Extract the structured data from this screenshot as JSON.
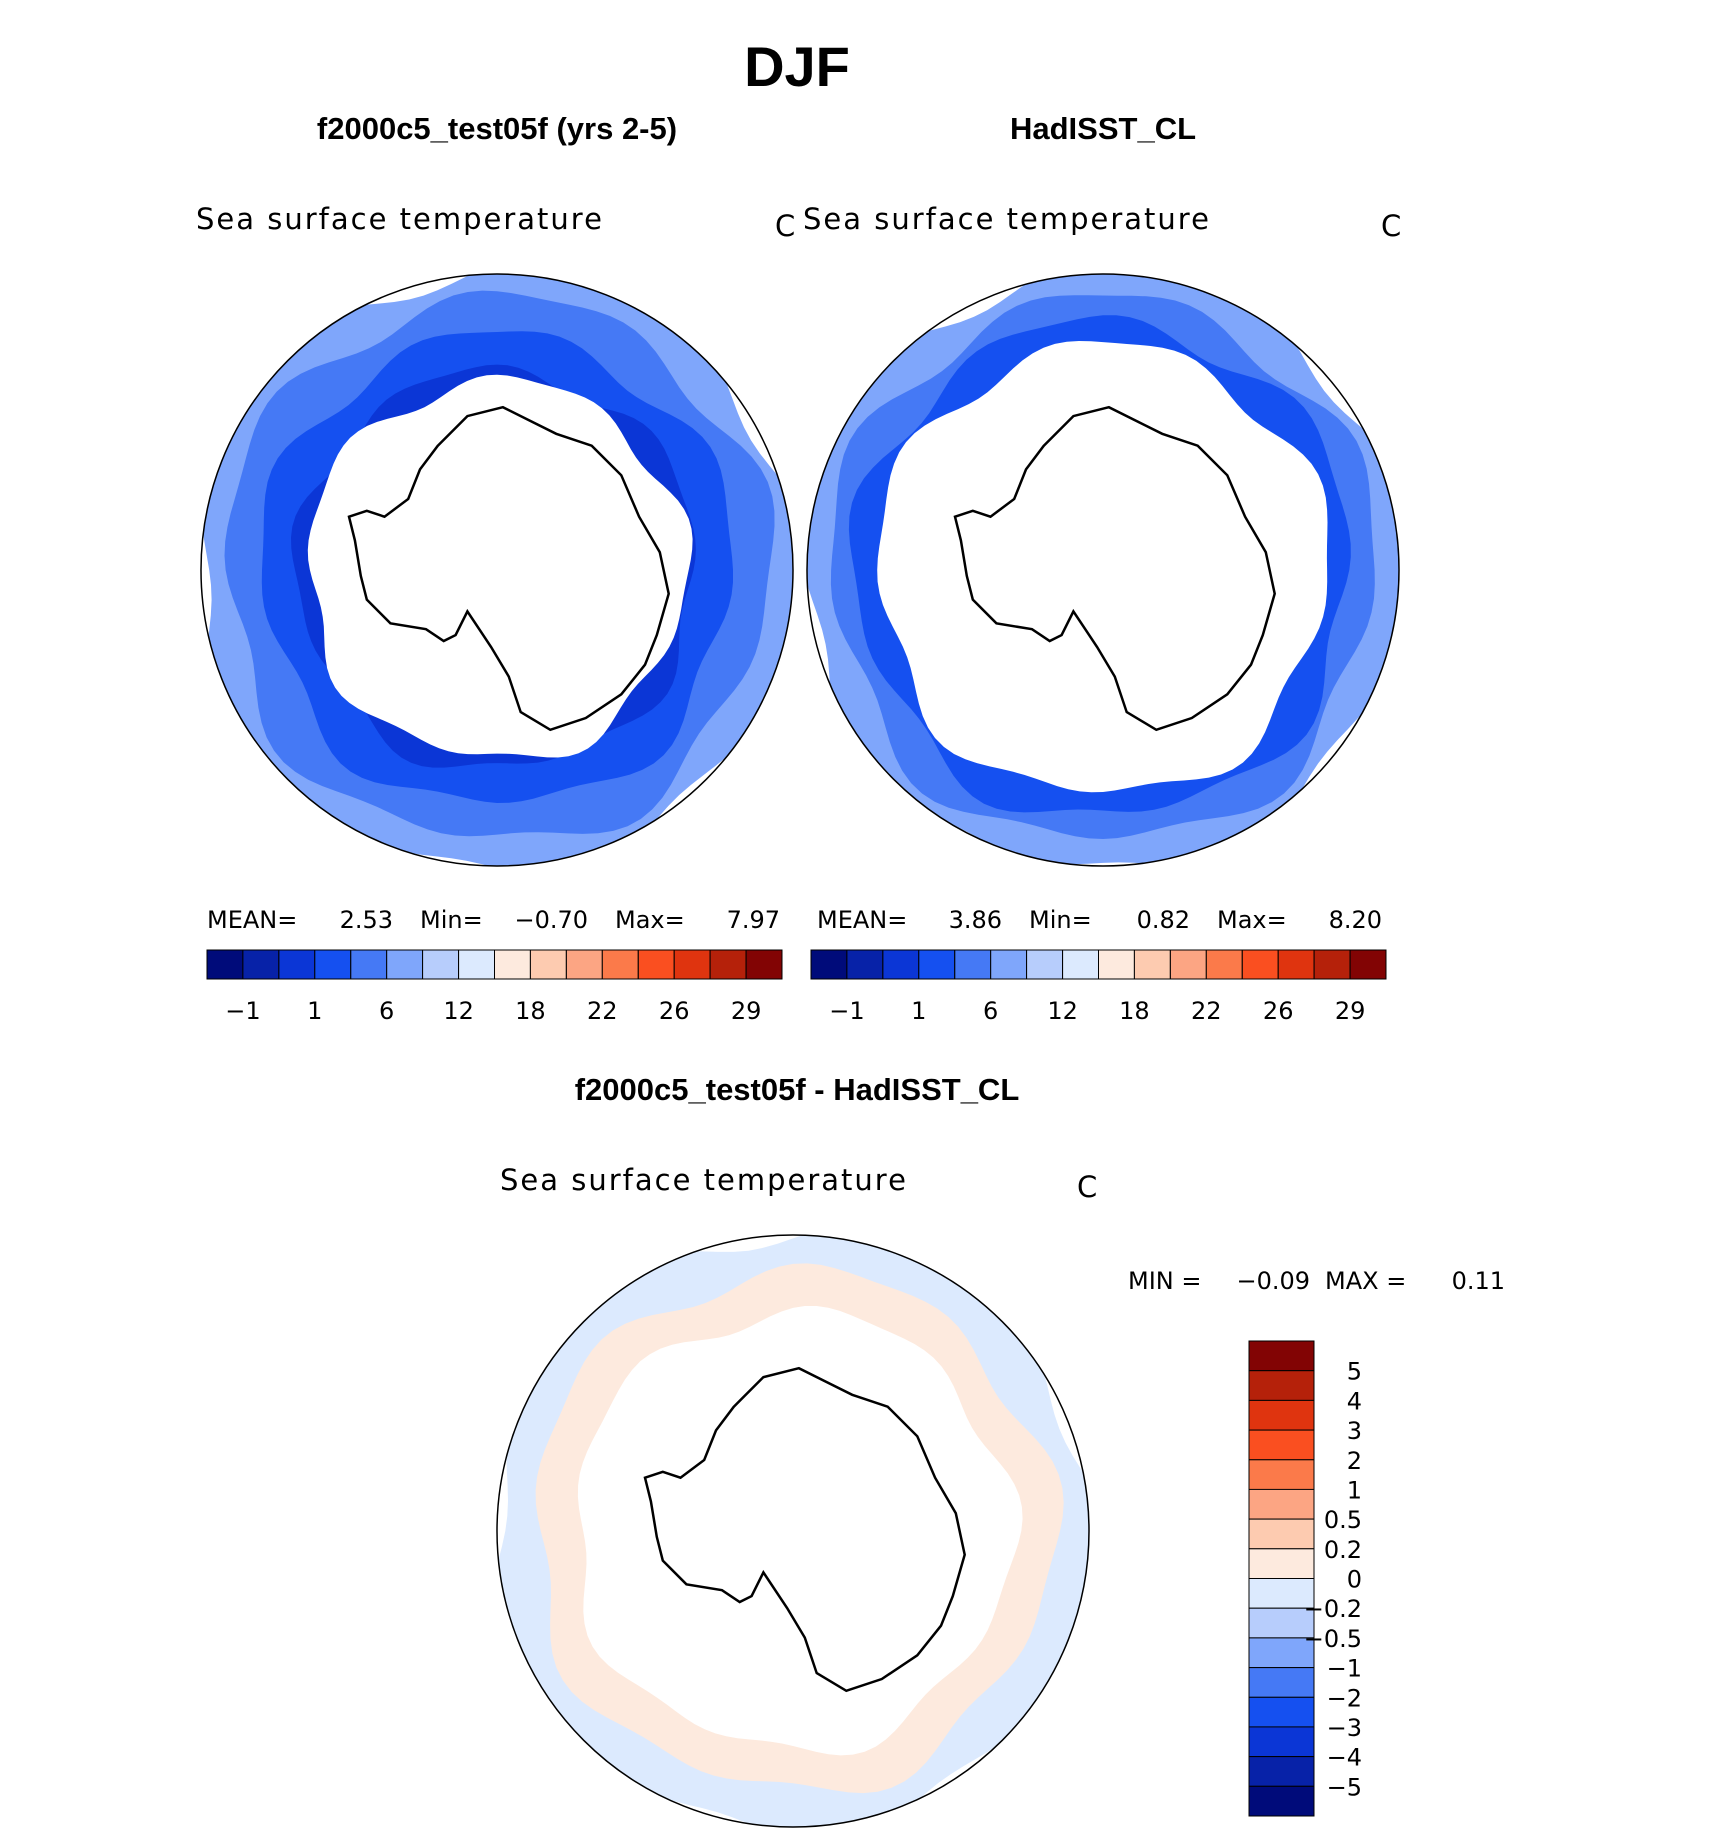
{
  "figure": {
    "title": "DJF"
  },
  "colors": {
    "abs_scale": [
      "#000b7a",
      "#0722a8",
      "#0b36d6",
      "#1550f0",
      "#4579f5",
      "#7fa6fb",
      "#b7cdfc",
      "#dceafe",
      "#fdeade",
      "#fdcbb0",
      "#fca583",
      "#fb7a4a",
      "#fa4f20",
      "#df340f",
      "#b5210a",
      "#820404"
    ],
    "diff_scale": [
      "#820404",
      "#b5210a",
      "#df340f",
      "#fa4f20",
      "#fb7a4a",
      "#fca583",
      "#fdcbb0",
      "#fdeade",
      "#dceafe",
      "#b7cdfc",
      "#7fa6fb",
      "#4579f5",
      "#1550f0",
      "#0b36d6",
      "#0722a8",
      "#000b7a"
    ],
    "land": "#ffffff",
    "coast": "#000000"
  },
  "panels": [
    {
      "title": "f2000c5_test05f (yrs 2-5)",
      "variable": "Sea surface temperature",
      "units": "C",
      "stats": {
        "mean_label": "MEAN=",
        "mean": "2.53",
        "min_label": "Min=",
        "min": "−0.70",
        "max_label": "Max=",
        "max": "7.97"
      },
      "colorbar_ticks": [
        "−1",
        "1",
        "6",
        "12",
        "18",
        "22",
        "26",
        "29"
      ],
      "map": {
        "fill_bands": [
          {
            "level": 5,
            "outer": 1.0,
            "inner": 0.0
          },
          {
            "level": 4,
            "outer": 0.9,
            "inner": 0.0
          },
          {
            "level": 3,
            "outer": 0.78,
            "inner": 0.0
          },
          {
            "level": 2,
            "outer": 0.66,
            "inner": 0.0
          }
        ],
        "ice_edge": 0.64
      }
    },
    {
      "title": "HadISST_CL",
      "variable": "Sea surface temperature",
      "units": "C",
      "stats": {
        "mean_label": "MEAN=",
        "mean": "3.86",
        "min_label": "Min=",
        "min": "0.82",
        "max_label": "Max=",
        "max": "8.20"
      },
      "colorbar_ticks": [
        "−1",
        "1",
        "6",
        "12",
        "18",
        "22",
        "26",
        "29"
      ],
      "map": {
        "fill_bands": [
          {
            "level": 5,
            "outer": 1.0,
            "inner": 0.0
          },
          {
            "level": 4,
            "outer": 0.9,
            "inner": 0.0
          },
          {
            "level": 3,
            "outer": 0.82,
            "inner": 0.0
          }
        ],
        "ice_edge": 0.76
      }
    }
  ],
  "difference": {
    "title": "f2000c5_test05f - HadISST_CL",
    "variable": "Sea surface temperature",
    "units": "C",
    "stats": {
      "min_label": "MIN =",
      "min": "−0.09",
      "max_label": "MAX =",
      "max": "0.11"
    },
    "colorbar_ticks": [
      "5",
      "4",
      "3",
      "2",
      "1",
      "0.5",
      "0.2",
      "0",
      "−0.2",
      "−0.5",
      "−1",
      "−2",
      "−3",
      "−4",
      "−5"
    ],
    "map": {
      "fill_bands": [
        {
          "level": 8,
          "outer": 1.0,
          "inner": 0.0
        },
        {
          "level": 7,
          "outer": 0.86,
          "inner": 0.0
        }
      ],
      "ice_edge": 0.74
    }
  }
}
